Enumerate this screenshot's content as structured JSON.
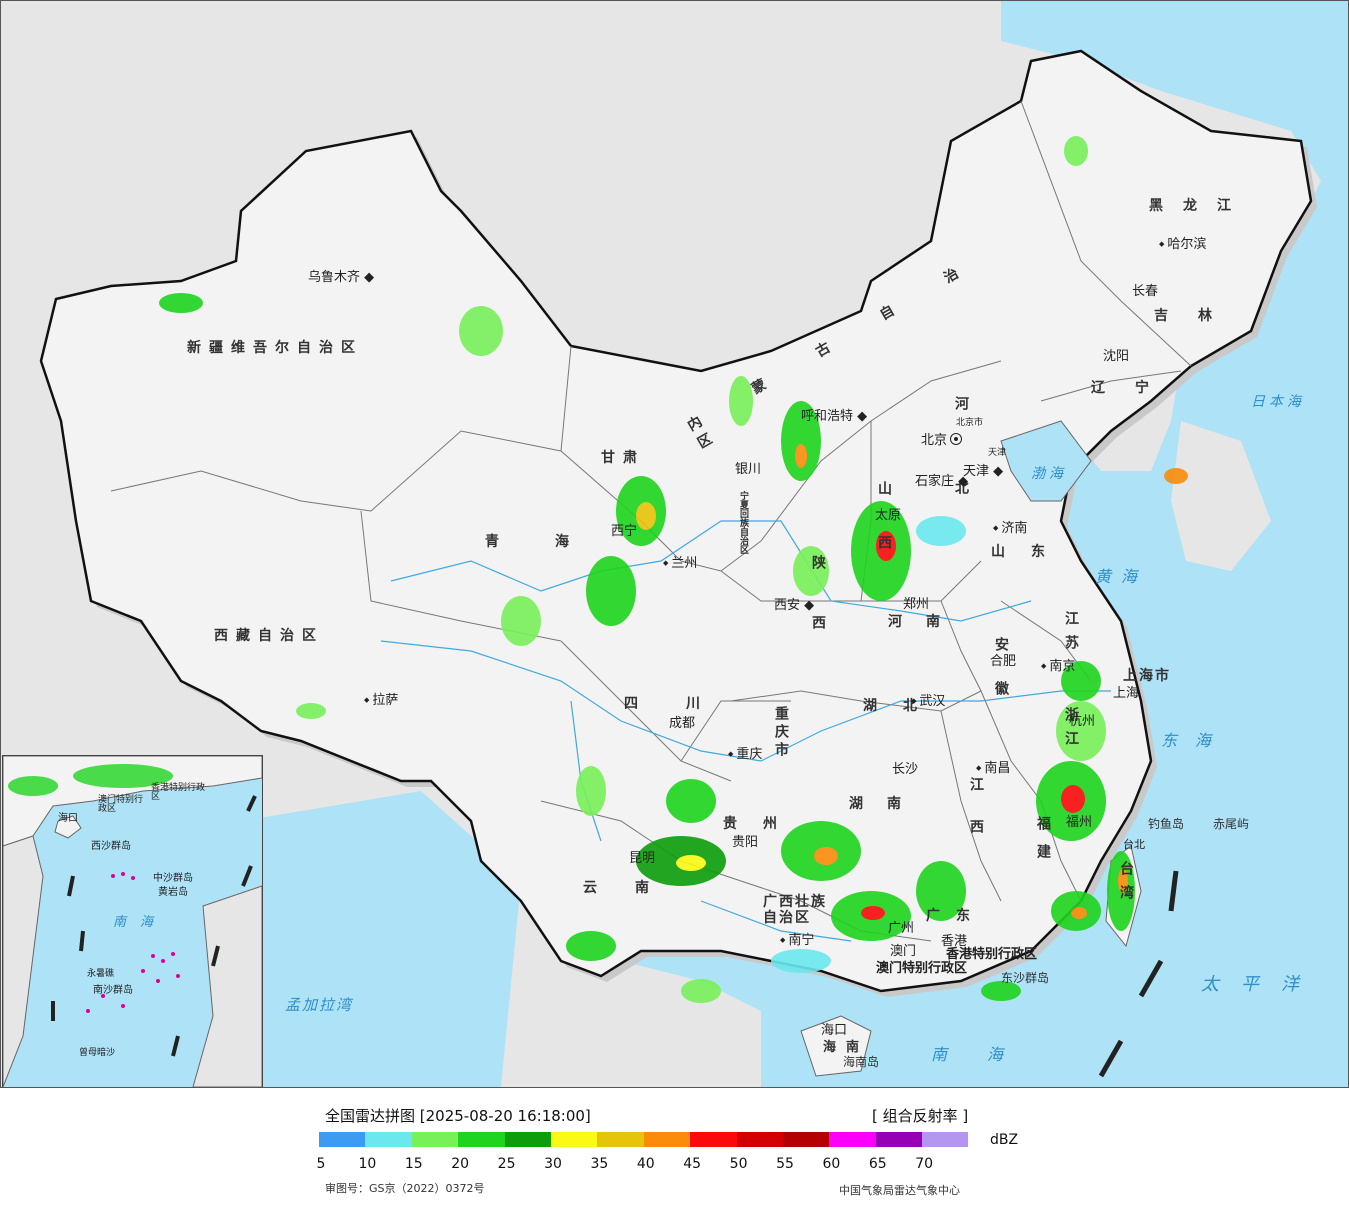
{
  "map": {
    "colors": {
      "sea": "#aee2f7",
      "land": "#f3f3f3",
      "foreign_land": "#e6e6e6",
      "border": "#111111",
      "river": "#3fa9e0"
    },
    "provinces": [
      "新疆维吾尔自治区",
      "西藏自治区",
      "青海",
      "甘肃",
      "宁夏回族自治区",
      "四川",
      "云南",
      "贵州",
      "重庆市",
      "广西壮族自治区",
      "广东",
      "湖南",
      "湖北",
      "江西",
      "福建",
      "浙江",
      "江苏",
      "安徽",
      "河南",
      "山东",
      "河北",
      "山西",
      "陕西",
      "内蒙古自治区",
      "黑龙江",
      "吉林",
      "辽宁",
      "台湾",
      "海南",
      "上海市"
    ],
    "cities": [
      "乌鲁木齐",
      "拉萨",
      "西宁",
      "兰州",
      "银川",
      "成都",
      "重庆",
      "昆明",
      "贵阳",
      "南宁",
      "广州",
      "澳门",
      "香港",
      "海口",
      "长沙",
      "武汉",
      "南昌",
      "福州",
      "台北",
      "杭州",
      "上海",
      "南京",
      "合肥",
      "郑州",
      "西安",
      "太原",
      "石家庄",
      "北京",
      "天津",
      "济南",
      "呼和浩特",
      "沈阳",
      "长春",
      "哈尔滨"
    ],
    "special_regions": [
      "香港特别行政区",
      "澳门特别行政区",
      "北京市",
      "天津"
    ],
    "seas": [
      "渤海",
      "黄海",
      "东海",
      "南海",
      "日本海",
      "太平洋",
      "孟加拉湾"
    ],
    "islands": [
      "钓鱼岛",
      "赤尾屿",
      "东沙群岛",
      "海南岛"
    ],
    "inset": {
      "labels": [
        "海口",
        "南海",
        "西沙群岛",
        "中沙群岛",
        "黄岩岛",
        "南沙群岛",
        "永暑礁",
        "曾母暗沙",
        "香港特别行政区",
        "澳门特别行政区"
      ]
    }
  },
  "legend": {
    "title": "全国雷达拼图 [2025-08-20 16:18:00]",
    "product": "[ 组合反射率 ]",
    "unit": "dBZ",
    "ticks": [
      "5",
      "10",
      "15",
      "20",
      "25",
      "30",
      "35",
      "40",
      "45",
      "50",
      "55",
      "60",
      "65",
      "70"
    ],
    "colors": [
      "#3d9cf2",
      "#6be8ee",
      "#78f05a",
      "#1ed41e",
      "#0c9e0c",
      "#fafa14",
      "#e6c40a",
      "#fa8c0a",
      "#fa0a0a",
      "#d20000",
      "#b40000",
      "#fa00fa",
      "#9600b4",
      "#b496f0"
    ],
    "approval_number": "审图号：GS京（2022）0372号",
    "organization": "中国气象局雷达气象中心"
  }
}
